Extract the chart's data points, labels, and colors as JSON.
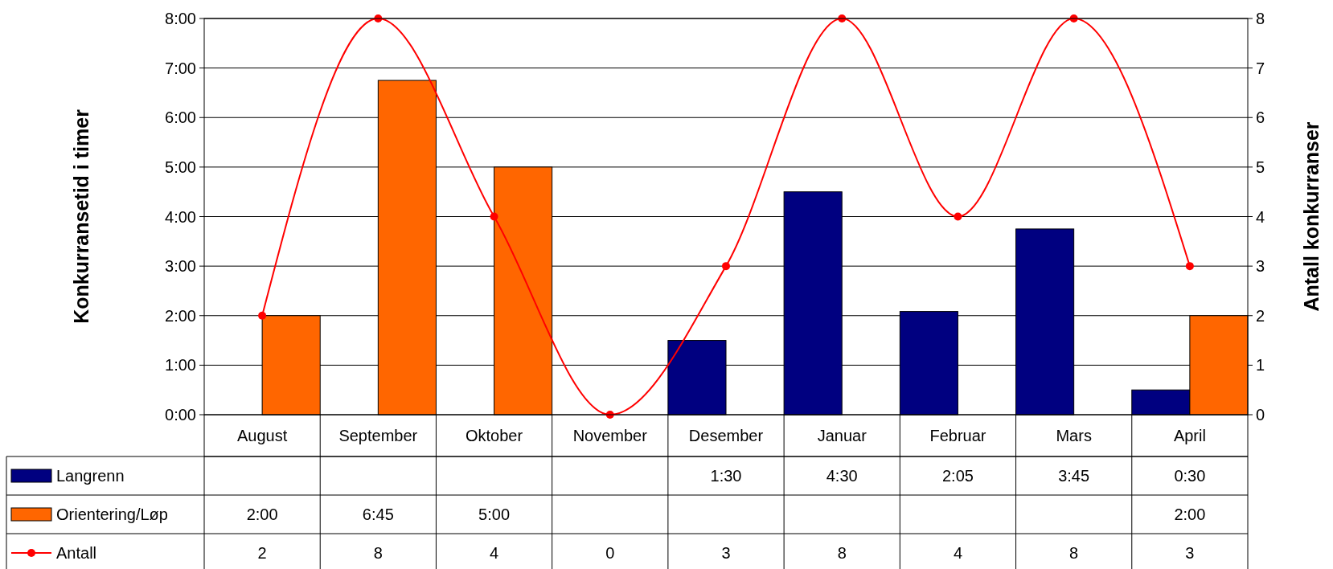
{
  "chart_data": {
    "type": "bar",
    "categories": [
      "August",
      "September",
      "Oktober",
      "November",
      "Desember",
      "Januar",
      "Februar",
      "Mars",
      "April"
    ],
    "series": [
      {
        "name": "Langrenn",
        "color": "#000080",
        "values": [
          null,
          null,
          null,
          null,
          1.5,
          4.5,
          2.0833,
          3.75,
          0.5
        ],
        "value_labels": [
          null,
          null,
          null,
          null,
          "1:30",
          "4:30",
          "2:05",
          "3:45",
          "0:30"
        ]
      },
      {
        "name": "Orientering/Løp",
        "color": "#ff6600",
        "values": [
          2,
          6.75,
          5,
          null,
          null,
          null,
          null,
          null,
          2
        ],
        "value_labels": [
          "2:00",
          "6:45",
          "5:00",
          null,
          null,
          null,
          null,
          null,
          "2:00"
        ]
      },
      {
        "name": "Antall",
        "type": "line",
        "axis": "y2",
        "color": "#ff0000",
        "values": [
          2,
          8,
          4,
          0,
          3,
          8,
          4,
          8,
          3
        ],
        "value_labels": [
          "2",
          "8",
          "4",
          "0",
          "3",
          "8",
          "4",
          "8",
          "3"
        ]
      }
    ],
    "ylabel": "Konkurransetid i timer",
    "y2label": "Antall konkurranser",
    "ylim": [
      0,
      8
    ],
    "yticks": [
      {
        "value": 0,
        "label": "0:00"
      },
      {
        "value": 1,
        "label": "1:00"
      },
      {
        "value": 2,
        "label": "2:00"
      },
      {
        "value": 3,
        "label": "3:00"
      },
      {
        "value": 4,
        "label": "4:00"
      },
      {
        "value": 5,
        "label": "5:00"
      },
      {
        "value": 6,
        "label": "6:00"
      },
      {
        "value": 7,
        "label": "7:00"
      },
      {
        "value": 8,
        "label": "8:00"
      }
    ],
    "y2lim": [
      0,
      8
    ],
    "y2ticks": [
      0,
      1,
      2,
      3,
      4,
      5,
      6,
      7,
      8
    ],
    "grid": "y",
    "legend": "bottom",
    "marker": "circle",
    "line_style": "solid"
  }
}
